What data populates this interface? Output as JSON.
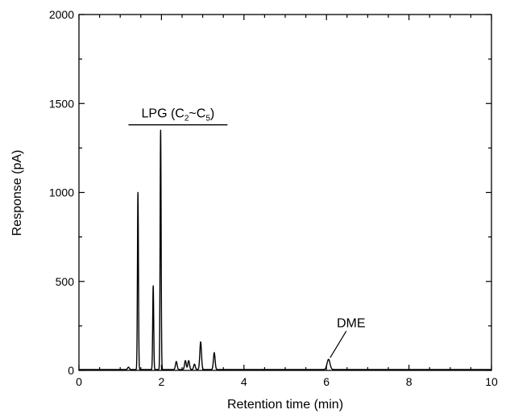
{
  "chart_data": {
    "type": "line",
    "xlabel": "Retention time (min)",
    "ylabel": "Response (pA)",
    "xlim": [
      0,
      10
    ],
    "ylim": [
      0,
      2000
    ],
    "xticks": [
      0,
      2,
      4,
      6,
      8,
      10
    ],
    "yticks": [
      0,
      500,
      1000,
      1500,
      2000
    ],
    "grid": false,
    "annotations": {
      "lpg": {
        "text": "LPG (C",
        "sub1": "2",
        "middle": "~C",
        "sub2": "5",
        "end": ")",
        "x_range": [
          1.2,
          3.6
        ],
        "y": 1380
      },
      "dme": {
        "text": "DME",
        "x": 6.05,
        "y": 62
      }
    },
    "baseline": 5,
    "peaks": [
      {
        "x": 1.2,
        "y": 18
      },
      {
        "x": 1.43,
        "y": 1000
      },
      {
        "x": 1.8,
        "y": 475
      },
      {
        "x": 1.98,
        "y": 1350
      },
      {
        "x": 2.36,
        "y": 50
      },
      {
        "x": 2.58,
        "y": 55
      },
      {
        "x": 2.66,
        "y": 55
      },
      {
        "x": 2.8,
        "y": 35
      },
      {
        "x": 2.95,
        "y": 160
      },
      {
        "x": 3.28,
        "y": 100
      },
      {
        "x": 6.05,
        "y": 62
      }
    ]
  }
}
